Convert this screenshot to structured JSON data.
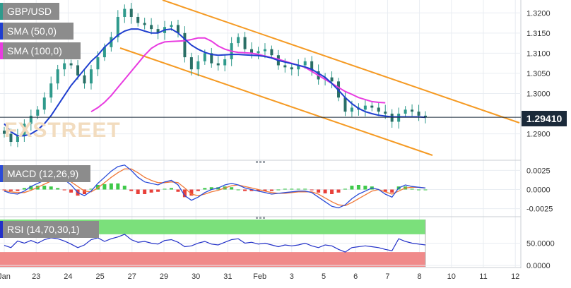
{
  "watermark": "FXSTREET",
  "last_price_label": "1.29410",
  "legend": {
    "pair": "GBP/USD",
    "sma50": "SMA (50,0)",
    "sma100": "SMA (100,0)",
    "macd": "MACD (12,26,9)",
    "rsi": "RSI (14,70,30,1)"
  },
  "colors": {
    "candle": "#2f9a8c",
    "sma50": "#1f3ecf",
    "sma100": "#e83be0",
    "channel": "#f59a23",
    "macd_line": "#2a4bd8",
    "signal_line": "#f07a3a",
    "hist_pos": "#3fc94a",
    "hist_neg": "#e8403a",
    "rsi_line": "#2230c8",
    "rsi_overbought": "#7be07b",
    "rsi_oversold": "#f08a8a"
  },
  "chart_data": [
    {
      "type": "line",
      "name": "price",
      "ylim": [
        1.2845,
        1.3225
      ],
      "y_ticks": [
        "1.3200",
        "1.3150",
        "1.3100",
        "1.3050",
        "1.3000",
        "1.2900"
      ],
      "x_ticks": [
        "Jan",
        "23",
        "24",
        "25",
        "27",
        "29",
        "30",
        "31",
        "Feb",
        "3",
        "5",
        "6",
        "7",
        "8",
        "10",
        "11",
        "12"
      ],
      "last_price": 1.2941,
      "series": [
        {
          "name": "GBP/USD",
          "values": [
            1.29,
            1.288,
            1.2895,
            1.2925,
            1.2945,
            1.296,
            1.299,
            1.3025,
            1.306,
            1.3075,
            1.307,
            1.3045,
            1.3025,
            1.306,
            1.309,
            1.3115,
            1.314,
            1.319,
            1.321,
            1.319,
            1.3175,
            1.317,
            1.316,
            1.315,
            1.3165,
            1.317,
            1.315,
            1.309,
            1.306,
            1.308,
            1.31,
            1.3075,
            1.307,
            1.3085,
            1.3125,
            1.314,
            1.311,
            1.31,
            1.3105,
            1.311,
            1.3095,
            1.307,
            1.3065,
            1.306,
            1.307,
            1.308,
            1.3055,
            1.3035,
            1.304,
            1.303,
            1.299,
            1.2955,
            1.2965,
            1.296,
            1.297,
            1.2965,
            1.2955,
            1.295,
            1.293,
            1.295,
            1.296,
            1.2955,
            1.2945,
            1.2941
          ]
        },
        {
          "name": "SMA (50,0)",
          "values": [
            1.2925,
            1.2905,
            1.2895,
            1.2895,
            1.29,
            1.291,
            1.2925,
            1.2945,
            1.297,
            1.2995,
            1.302,
            1.304,
            1.306,
            1.308,
            1.3095,
            1.3115,
            1.313,
            1.3145,
            1.3155,
            1.316,
            1.316,
            1.3155,
            1.315,
            1.315,
            1.3158,
            1.316,
            1.315,
            1.3135,
            1.312,
            1.311,
            1.3102,
            1.3097,
            1.3095,
            1.3096,
            1.3097,
            1.3097,
            1.3096,
            1.3095,
            1.3094,
            1.3092,
            1.3088,
            1.3082,
            1.3078,
            1.3074,
            1.307,
            1.3066,
            1.306,
            1.305,
            1.304,
            1.3025,
            1.3008,
            1.299,
            1.2975,
            1.2963,
            1.2955,
            1.295,
            1.2946,
            1.2944,
            1.2942,
            1.2942,
            1.2942,
            1.2942,
            1.2942,
            1.2941
          ]
        },
        {
          "name": "SMA (100,0)",
          "values": [
            null,
            null,
            null,
            null,
            null,
            null,
            null,
            null,
            null,
            null,
            null,
            null,
            null,
            1.2955,
            1.2965,
            1.2978,
            1.2995,
            1.3015,
            1.3035,
            1.3055,
            1.3075,
            1.3095,
            1.3112,
            1.3122,
            1.3128,
            1.3129,
            1.313,
            1.3131,
            1.3134,
            1.3138,
            1.3138,
            1.313,
            1.3118,
            1.311,
            1.3105,
            1.3102,
            1.3101,
            1.31,
            1.3097,
            1.3093,
            1.3089,
            1.3085,
            1.308,
            1.3075,
            1.307,
            1.3065,
            1.3055,
            1.3045,
            1.3035,
            1.3025,
            1.3015,
            1.3005,
            1.2998,
            1.299,
            1.2985,
            1.298,
            1.2978,
            1.2977,
            null,
            null,
            null,
            null,
            null,
            null
          ]
        }
      ]
    },
    {
      "type": "bar",
      "name": "MACD (12,26,9)",
      "ylim": [
        -0.003,
        0.003
      ],
      "y_ticks": [
        "0.0025",
        "0.0000",
        "-0.0025"
      ],
      "series": [
        {
          "name": "MACD",
          "values": [
            -0.0002,
            -0.0005,
            -0.0006,
            -0.0002,
            0.0004,
            0.0008,
            0.0012,
            0.0015,
            0.0016,
            0.0013,
            0.0006,
            -0.0004,
            -0.0008,
            -0.0002,
            0.0008,
            0.0016,
            0.0024,
            0.003,
            0.0032,
            0.0025,
            0.0016,
            0.001,
            0.0008,
            0.0006,
            0.001,
            0.0012,
            0.0006,
            -0.0008,
            -0.0014,
            -0.001,
            -0.0004,
            0.0,
            0.0002,
            0.0006,
            0.0008,
            0.0006,
            0.0002,
            0.0,
            -0.0002,
            -0.0004,
            -0.0006,
            -0.0005,
            -0.0004,
            -0.0003,
            -0.0002,
            -0.0002,
            -0.0004,
            -0.001,
            -0.0016,
            -0.0022,
            -0.0024,
            -0.002,
            -0.0012,
            -0.0006,
            -0.0002,
            0.0002,
            0.0,
            -0.0006,
            -0.001,
            0.0002,
            0.0006,
            0.0004,
            0.0003,
            0.0002
          ]
        },
        {
          "name": "Signal",
          "values": [
            -0.0001,
            -0.0003,
            -0.0004,
            -0.0004,
            -0.0001,
            0.0003,
            0.0007,
            0.0011,
            0.0014,
            0.0014,
            0.001,
            0.0004,
            -0.0002,
            -0.0003,
            0.0002,
            0.0009,
            0.0016,
            0.0022,
            0.0027,
            0.0027,
            0.0022,
            0.0016,
            0.0012,
            0.0009,
            0.0009,
            0.001,
            0.0009,
            0.0002,
            -0.0006,
            -0.0008,
            -0.0006,
            -0.0003,
            -0.0001,
            0.0002,
            0.0005,
            0.0006,
            0.0004,
            0.0002,
            0.0,
            -0.0002,
            -0.0004,
            -0.0005,
            -0.0005,
            -0.0004,
            -0.0003,
            -0.0003,
            -0.0003,
            -0.0006,
            -0.0011,
            -0.0016,
            -0.002,
            -0.0021,
            -0.0017,
            -0.0012,
            -0.0007,
            -0.0002,
            0.0,
            -0.0003,
            -0.0006,
            -0.0002,
            0.0002,
            0.0003,
            0.0003,
            0.0002
          ]
        }
      ]
    },
    {
      "type": "line",
      "name": "RSI (14,70,30,1)",
      "ylim": [
        0,
        100
      ],
      "y_ticks": [
        "50.0000",
        "0.0000"
      ],
      "overbought": 70,
      "oversold": 30,
      "series": [
        {
          "name": "RSI",
          "values": [
            45,
            40,
            55,
            50,
            56,
            50,
            58,
            62,
            60,
            55,
            48,
            40,
            46,
            58,
            62,
            54,
            60,
            64,
            70,
            58,
            52,
            54,
            50,
            48,
            56,
            58,
            52,
            42,
            44,
            50,
            54,
            48,
            46,
            52,
            58,
            60,
            50,
            52,
            48,
            50,
            46,
            42,
            46,
            44,
            46,
            50,
            44,
            40,
            46,
            44,
            36,
            30,
            40,
            42,
            44,
            42,
            40,
            36,
            33,
            60,
            54,
            50,
            48,
            46
          ]
        }
      ]
    }
  ]
}
